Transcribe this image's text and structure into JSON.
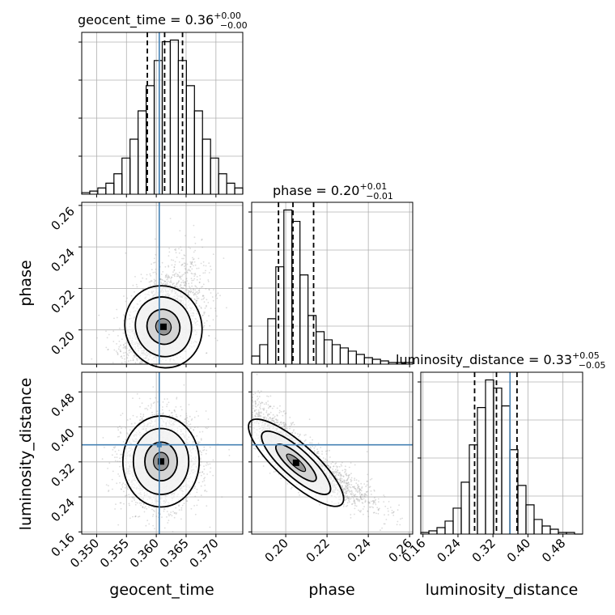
{
  "params": [
    "geocent_time",
    "phase",
    "luminosity_distance"
  ],
  "titles": [
    {
      "base": "geocent_time = 0.36",
      "sup": "+0.00",
      "sub": "−0.00"
    },
    {
      "base": "phase = 0.20",
      "sup": "+0.01",
      "sub": "−0.01"
    },
    {
      "base": "luminosity_distance = 0.33",
      "sup": "+0.05",
      "sub": "−0.05"
    }
  ],
  "axis_labels": {
    "x": [
      "geocent_time",
      "phase",
      "luminosity_distance"
    ],
    "y": [
      "phase",
      "luminosity_distance"
    ]
  },
  "colors": {
    "truth": "#4682b4",
    "hist": "#000000",
    "grid": "#b0b0b0",
    "points": "#9a9a9a"
  },
  "chart_data": {
    "type": "corner",
    "parameters": [
      "geocent_time",
      "phase",
      "luminosity_distance"
    ],
    "ranges": {
      "geocent_time": [
        0.3475,
        0.3745
      ],
      "phase": [
        0.1835,
        0.2615
      ],
      "luminosity_distance": [
        0.155,
        0.525
      ]
    },
    "ticks": {
      "geocent_time": {
        "values": [
          0.35,
          0.355,
          0.36,
          0.365,
          0.37
        ],
        "labels": [
          "0.350",
          "0.355",
          "0.360",
          "0.365",
          "0.370"
        ]
      },
      "phase": {
        "values": [
          0.2,
          0.22,
          0.24,
          0.26
        ],
        "labels": [
          "0.20",
          "0.22",
          "0.24",
          "0.26"
        ]
      },
      "luminosity_distance": {
        "values": [
          0.16,
          0.24,
          0.32,
          0.4,
          0.48
        ],
        "labels": [
          "0.16",
          "0.24",
          "0.32",
          "0.40",
          "0.48"
        ]
      }
    },
    "truths": {
      "geocent_time": 0.3605,
      "phase": null,
      "luminosity_distance": 0.359
    },
    "quantiles": {
      "geocent_time": [
        0.3585,
        0.3614,
        0.3644
      ],
      "phase": [
        0.1965,
        0.2035,
        0.2135
      ],
      "luminosity_distance": [
        0.278,
        0.328,
        0.375
      ]
    },
    "histograms": {
      "geocent_time": {
        "bin_start": 0.3475,
        "bin_width": 0.00135,
        "counts": [
          1,
          2,
          4,
          7,
          13,
          23,
          35,
          53,
          69,
          85,
          97,
          98,
          85,
          69,
          53,
          35,
          23,
          13,
          7,
          4
        ]
      },
      "phase": {
        "bin_start": 0.1835,
        "bin_width": 0.0039,
        "counts": [
          5,
          12,
          28,
          60,
          95,
          88,
          55,
          30,
          20,
          15,
          12,
          10,
          8,
          6,
          4,
          3,
          2,
          1,
          1,
          1
        ]
      },
      "luminosity_distance": {
        "bin_start": 0.155,
        "bin_width": 0.0185,
        "counts": [
          1,
          2,
          4,
          8,
          16,
          32,
          55,
          78,
          95,
          90,
          79,
          52,
          30,
          18,
          9,
          5,
          3,
          1,
          1,
          0
        ]
      }
    },
    "density_peaks": [
      {
        "x": "geocent_time",
        "y": "phase",
        "peak": [
          0.3612,
          0.2015
        ]
      },
      {
        "x": "geocent_time",
        "y": "luminosity_distance",
        "peak": [
          0.3608,
          0.321
        ]
      },
      {
        "x": "phase",
        "y": "luminosity_distance",
        "peak": [
          0.205,
          0.318
        ]
      }
    ],
    "grid": true
  }
}
